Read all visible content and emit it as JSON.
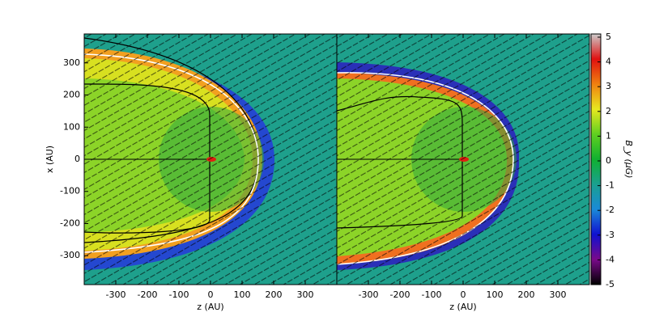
{
  "chart_data": [
    {
      "type": "heatmap",
      "x_label": "z (AU)",
      "y_label": "x (AU)",
      "xlim": [
        -400,
        400
      ],
      "xticks": [
        -300,
        -200,
        -100,
        0,
        100,
        200,
        300
      ],
      "ylim": [
        -390,
        390
      ],
      "yticks": [
        -300,
        -200,
        -100,
        0,
        100,
        200,
        300
      ]
    },
    {
      "type": "heatmap",
      "x_label": "z (AU)",
      "xlim": [
        -400,
        400
      ],
      "xticks": [
        -300,
        -200,
        -100,
        0,
        100,
        200,
        300
      ],
      "ylim": [
        -390,
        390
      ]
    }
  ],
  "colorbar": {
    "label": "B_y (μG)",
    "lim": [
      -5,
      5.13
    ],
    "ticks": [
      -5,
      -4,
      -3,
      -2,
      -1,
      0,
      1,
      2,
      3,
      4,
      5
    ],
    "colorscale": [
      "#000000",
      "#7a0a8a",
      "#1010d0",
      "#1a8ad8",
      "#1aa090",
      "#10b030",
      "#60d020",
      "#e8e820",
      "#f08010",
      "#e01010",
      "#cccccc"
    ]
  }
}
